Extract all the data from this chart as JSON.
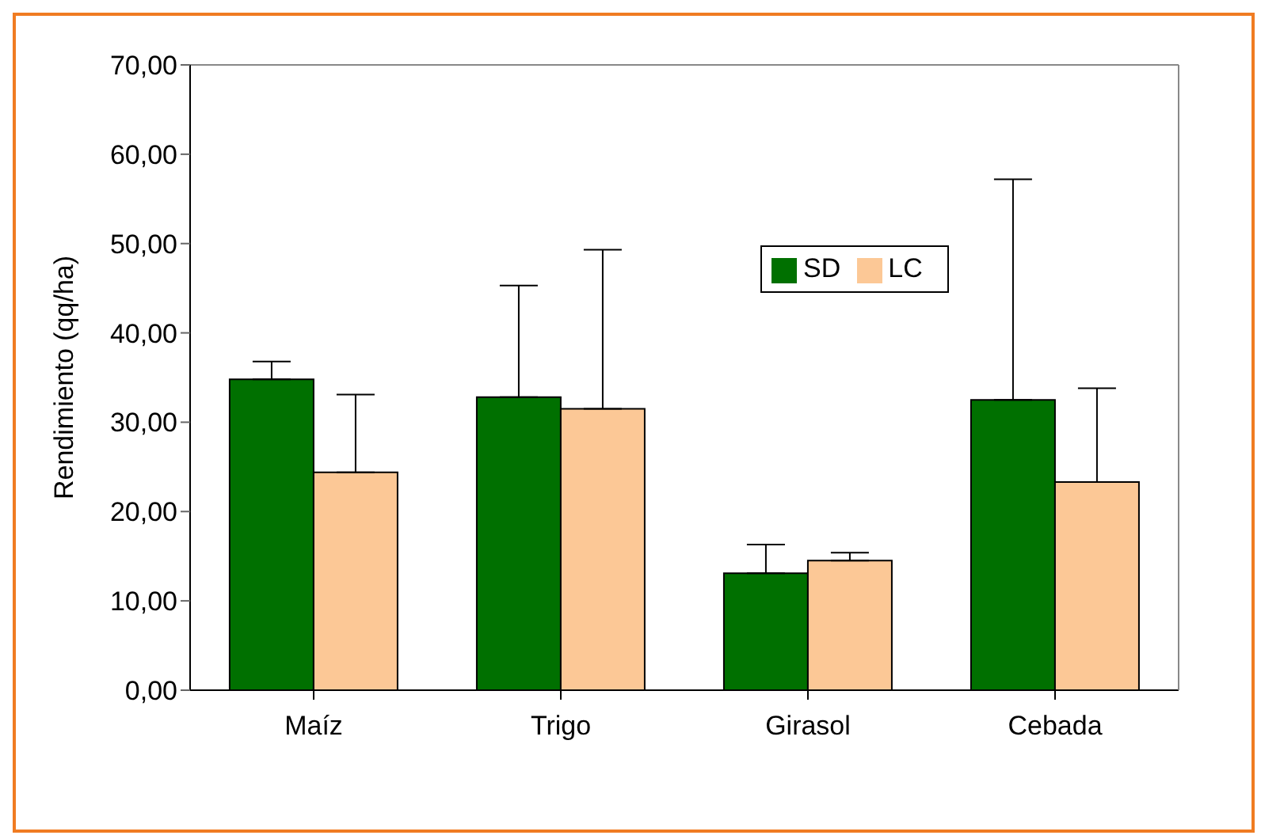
{
  "chart_data": {
    "type": "bar",
    "ylabel": "Rendimiento (qq/ha)",
    "categories": [
      "Maíz",
      "Trigo",
      "Girasol",
      "Cebada"
    ],
    "series": [
      {
        "name": "SD",
        "color": "#007000",
        "values": [
          34.8,
          32.8,
          13.1,
          32.5
        ],
        "errors": [
          [
            34.8,
            36.8
          ],
          [
            32.8,
            45.3
          ],
          [
            13.1,
            16.3
          ],
          [
            32.5,
            57.2
          ]
        ]
      },
      {
        "name": "LC",
        "color": "#fcc896",
        "values": [
          24.4,
          31.5,
          14.5,
          23.3
        ],
        "errors": [
          [
            24.4,
            33.1
          ],
          [
            31.5,
            49.3
          ],
          [
            14.5,
            15.4
          ],
          [
            23.3,
            33.8
          ]
        ]
      }
    ],
    "ylim": [
      0,
      70
    ],
    "yticks": [
      {
        "value": 0,
        "label": "0,00"
      },
      {
        "value": 10,
        "label": "10,00"
      },
      {
        "value": 20,
        "label": "20,00"
      },
      {
        "value": 30,
        "label": "30,00"
      },
      {
        "value": 40,
        "label": "40,00"
      },
      {
        "value": 50,
        "label": "50,00"
      },
      {
        "value": 60,
        "label": "60,00"
      },
      {
        "value": 70,
        "label": "70,00"
      }
    ],
    "grid": false,
    "legend": "top"
  }
}
